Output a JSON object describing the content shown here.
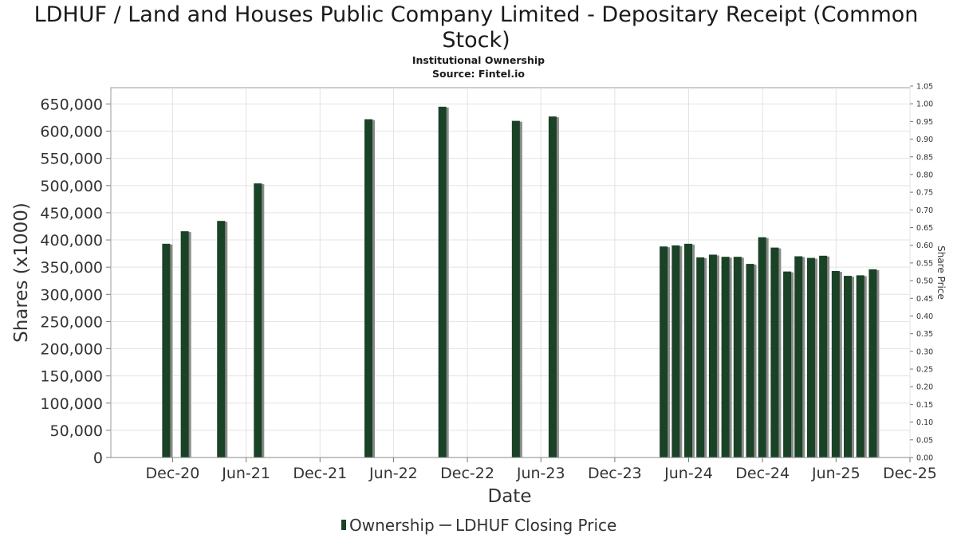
{
  "chart_data": {
    "type": "bar",
    "title_line1": "LDHUF / Land and Houses Public Company Limited - Depositary Receipt (Common",
    "title_line2": "Stock)",
    "subtitle": "Institutional Ownership",
    "source": "Source: Fintel.io",
    "xlabel": "Date",
    "ylabel": "Shares (x1000)",
    "y2label": "Share Price",
    "ylim": [
      0,
      680000
    ],
    "y2lim": [
      0,
      1.05
    ],
    "yticks": [
      "0",
      "50,000",
      "100,000",
      "150,000",
      "200,000",
      "250,000",
      "300,000",
      "350,000",
      "400,000",
      "450,000",
      "500,000",
      "550,000",
      "600,000",
      "650,000"
    ],
    "y2ticks": [
      "0.00",
      "0.05",
      "0.10",
      "0.15",
      "0.20",
      "0.25",
      "0.30",
      "0.35",
      "0.40",
      "0.45",
      "0.50",
      "0.55",
      "0.60",
      "0.65",
      "0.70",
      "0.75",
      "0.80",
      "0.85",
      "0.90",
      "0.95",
      "1.00",
      "1.05"
    ],
    "xticks": [
      "Dec-20",
      "Jun-21",
      "Dec-21",
      "Jun-22",
      "Dec-22",
      "Jun-23",
      "Dec-23",
      "Jun-24",
      "Dec-24",
      "Jun-25",
      "Dec-25"
    ],
    "xrange": [
      "2020-07-01",
      "2025-12-01"
    ],
    "grid": true,
    "legend_position": "bottom",
    "series": [
      {
        "name": "Ownership",
        "color": "#1a4226",
        "points": [
          {
            "date": "2020-11-15",
            "value": 393000
          },
          {
            "date": "2020-12-31",
            "value": 416000
          },
          {
            "date": "2021-03-31",
            "value": 435000
          },
          {
            "date": "2021-06-30",
            "value": 504000
          },
          {
            "date": "2022-03-31",
            "value": 622000
          },
          {
            "date": "2022-09-30",
            "value": 645000
          },
          {
            "date": "2023-03-31",
            "value": 619000
          },
          {
            "date": "2023-06-30",
            "value": 627000
          },
          {
            "date": "2024-03-31",
            "value": 388000
          },
          {
            "date": "2024-04-30",
            "value": 390000
          },
          {
            "date": "2024-05-31",
            "value": 393000
          },
          {
            "date": "2024-06-30",
            "value": 368000
          },
          {
            "date": "2024-07-31",
            "value": 373000
          },
          {
            "date": "2024-08-31",
            "value": 369000
          },
          {
            "date": "2024-09-30",
            "value": 369000
          },
          {
            "date": "2024-10-31",
            "value": 356000
          },
          {
            "date": "2024-11-30",
            "value": 405000
          },
          {
            "date": "2024-12-31",
            "value": 386000
          },
          {
            "date": "2025-01-31",
            "value": 342000
          },
          {
            "date": "2025-02-28",
            "value": 370000
          },
          {
            "date": "2025-03-31",
            "value": 367000
          },
          {
            "date": "2025-04-30",
            "value": 371000
          },
          {
            "date": "2025-05-31",
            "value": 343000
          },
          {
            "date": "2025-06-30",
            "value": 334000
          },
          {
            "date": "2025-07-31",
            "value": 335000
          },
          {
            "date": "2025-08-31",
            "value": 346000
          }
        ]
      },
      {
        "name": "LDHUF Closing Price",
        "color": "#555555",
        "points": []
      }
    ]
  }
}
